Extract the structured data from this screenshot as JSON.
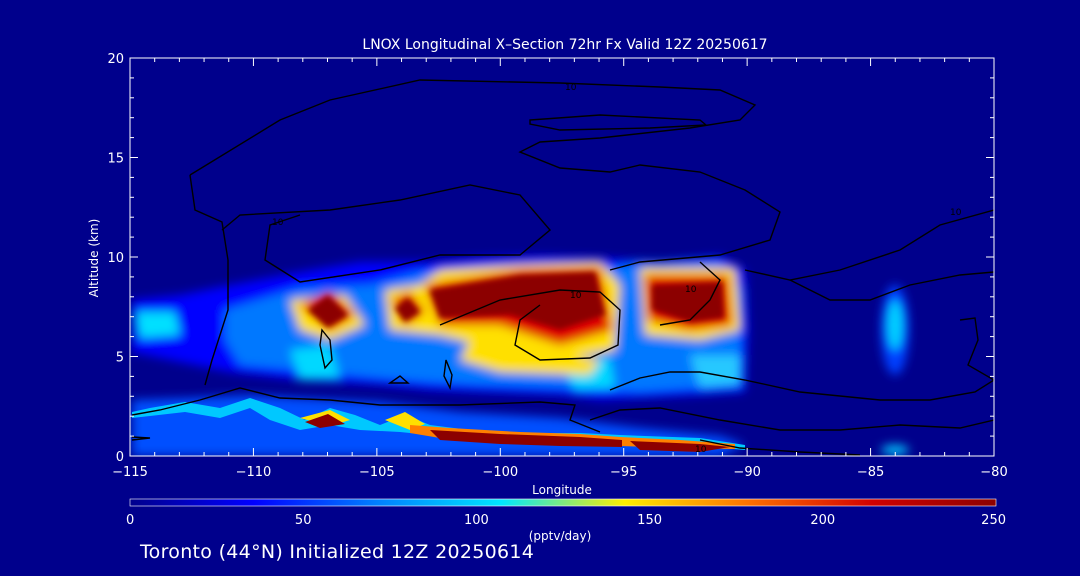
{
  "chart_data": {
    "type": "heatmap",
    "title": "LNOX Longitudinal X–Section 72hr  Fx Valid 12Z 20250617",
    "xlabel": "Longitude",
    "ylabel": "Altitude (km)",
    "xlim": [
      -115,
      -80
    ],
    "ylim": [
      0,
      20
    ],
    "x_ticks": [
      "−115",
      "−110",
      "−105",
      "−100",
      "−95",
      "−90",
      "−85",
      "−80"
    ],
    "x_tick_values": [
      -115,
      -110,
      -105,
      -100,
      -95,
      -90,
      -85,
      -80
    ],
    "y_ticks": [
      "0",
      "5",
      "10",
      "15",
      "20"
    ],
    "y_tick_values": [
      0,
      5,
      10,
      15,
      20
    ],
    "colorbar": {
      "label": "(pptv/day)",
      "range": [
        0,
        250
      ],
      "ticks": [
        "0",
        "50",
        "100",
        "150",
        "200",
        "250"
      ],
      "tick_values": [
        0,
        50,
        100,
        150,
        200,
        250
      ],
      "colormap": [
        "#00008c",
        "#0000ff",
        "#0080ff",
        "#00e6ff",
        "#ffee00",
        "#ff7000",
        "#d00000",
        "#8c0000"
      ]
    },
    "units": "pptv/day",
    "features": [
      {
        "lon": -114,
        "alt": 6.8,
        "value": 55
      },
      {
        "lon": -111,
        "alt": 6.8,
        "value": 70
      },
      {
        "lon": -107,
        "alt": 7.6,
        "value": 240
      },
      {
        "lon": -104,
        "alt": 7.4,
        "value": 230
      },
      {
        "lon": -101,
        "alt": 7.8,
        "value": 250
      },
      {
        "lon": -97,
        "alt": 8.0,
        "value": 250
      },
      {
        "lon": -92.5,
        "alt": 8.0,
        "value": 250
      },
      {
        "lon": -84,
        "alt": 6.6,
        "value": 130
      },
      {
        "lon": -100,
        "alt": 5.0,
        "value": 90
      },
      {
        "lon": -107,
        "alt": 1.8,
        "value": 230
      },
      {
        "lon": -104,
        "alt": 1.6,
        "value": 230
      },
      {
        "lon": -99,
        "alt": 0.7,
        "value": 250
      },
      {
        "lon": -94,
        "alt": 0.4,
        "value": 250
      },
      {
        "lon": -110,
        "alt": 2.6,
        "value": 160
      },
      {
        "lon": -84,
        "alt": 0.4,
        "value": 100
      }
    ],
    "contour_labels": [
      "10",
      "10",
      "10",
      "10",
      "10",
      "10"
    ],
    "grid": false
  },
  "footer": "Toronto (44°N) Initialized 12Z 20250614"
}
